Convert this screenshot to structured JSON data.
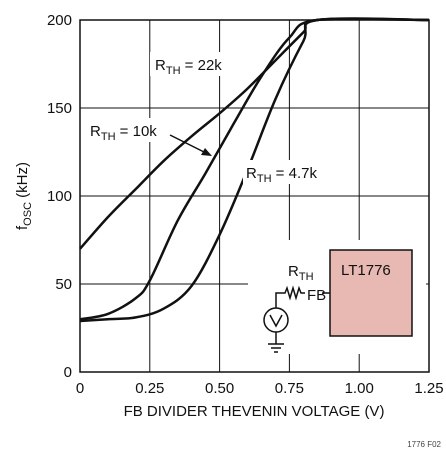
{
  "figure_id": "1776 F02",
  "colors": {
    "curve": "#111111",
    "grid": "#111111",
    "ic_fill": "#e8b9b3"
  },
  "inset": {
    "ic_label": "LT1776",
    "resistor_label_main": "R",
    "resistor_label_sub": "TH",
    "pin_label": "FB",
    "icons": [
      "resistor-icon",
      "voltage-source-icon",
      "ground-icon"
    ]
  },
  "chart_data": {
    "type": "line",
    "title": "",
    "xlabel": "FB DIVIDER THEVENIN VOLTAGE (V)",
    "ylabel_main": "f",
    "ylabel_sub": "OSC",
    "ylabel_rest": " (kHz)",
    "xlim": [
      0,
      1.25
    ],
    "ylim": [
      0,
      200
    ],
    "x_ticks": [
      0,
      0.25,
      0.5,
      0.75,
      1.0,
      1.25
    ],
    "x_tick_labels": [
      "0",
      "0.25",
      "0.50",
      "0.75",
      "1.00",
      "1.25"
    ],
    "y_ticks": [
      0,
      50,
      100,
      150,
      200
    ],
    "y_tick_labels": [
      "0",
      "50",
      "100",
      "150",
      "200"
    ],
    "grid": true,
    "series": [
      {
        "name_main": "R",
        "name_sub": "TH",
        "name_rest": " = 22k",
        "points": [
          [
            0,
            70
          ],
          [
            0.1,
            88
          ],
          [
            0.2,
            104
          ],
          [
            0.3,
            120
          ],
          [
            0.4,
            134
          ],
          [
            0.5,
            147
          ],
          [
            0.6,
            161
          ],
          [
            0.7,
            177
          ],
          [
            0.8,
            193
          ],
          [
            0.85,
            200
          ],
          [
            1.25,
            200
          ]
        ]
      },
      {
        "name_main": "R",
        "name_sub": "TH",
        "name_rest": " = 10k",
        "points": [
          [
            0,
            30
          ],
          [
            0.1,
            33
          ],
          [
            0.2,
            42
          ],
          [
            0.25,
            52
          ],
          [
            0.35,
            86
          ],
          [
            0.45,
            113
          ],
          [
            0.55,
            141
          ],
          [
            0.65,
            168
          ],
          [
            0.75,
            190
          ],
          [
            0.85,
            200
          ],
          [
            1.25,
            200
          ]
        ]
      },
      {
        "name_main": "R",
        "name_sub": "TH",
        "name_rest": " = 4.7k",
        "points": [
          [
            0,
            29
          ],
          [
            0.1,
            30
          ],
          [
            0.2,
            31
          ],
          [
            0.3,
            36
          ],
          [
            0.4,
            49
          ],
          [
            0.5,
            78
          ],
          [
            0.6,
            115
          ],
          [
            0.7,
            155
          ],
          [
            0.8,
            188
          ],
          [
            0.85,
            200
          ],
          [
            1.25,
            200
          ]
        ]
      }
    ]
  }
}
